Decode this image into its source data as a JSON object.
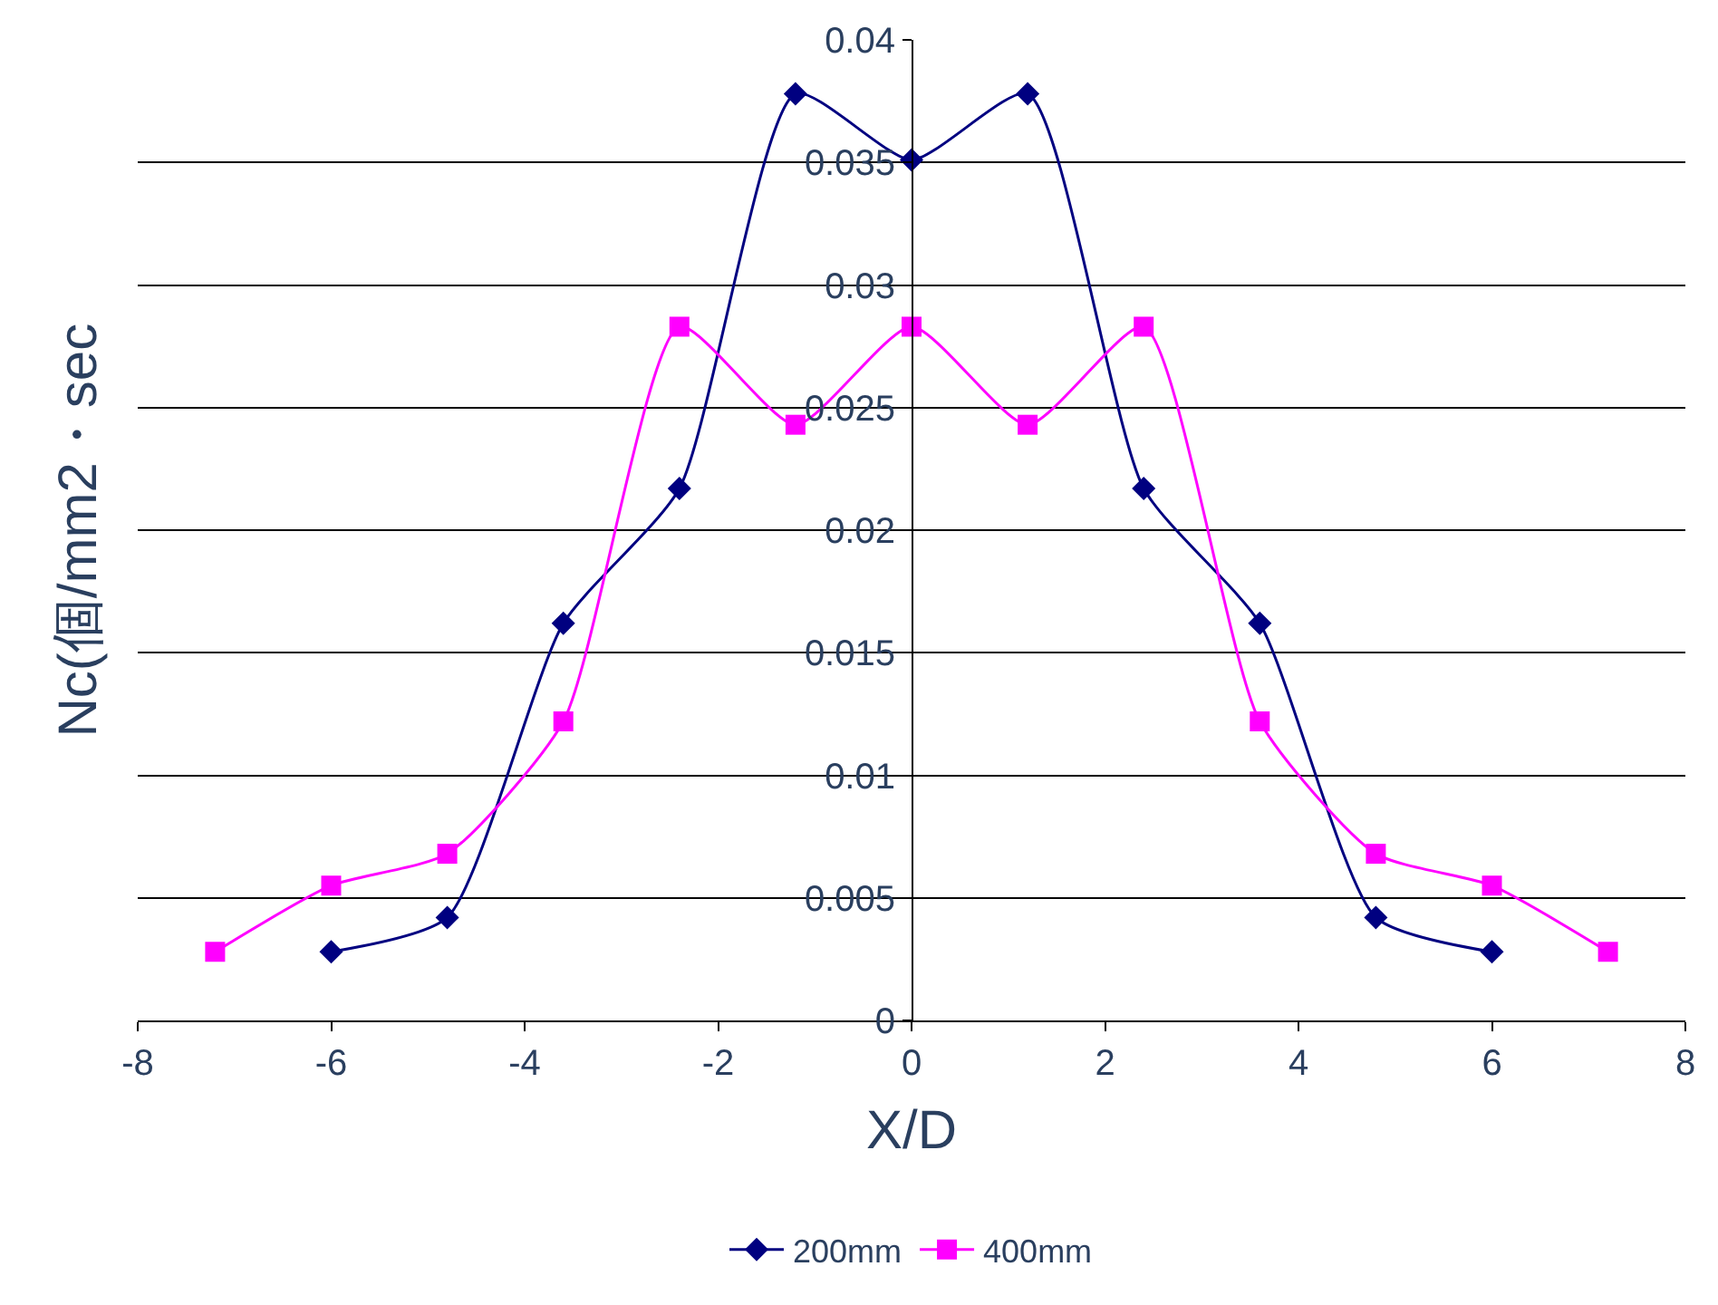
{
  "chart_data": {
    "type": "line",
    "xlabel": "X/D",
    "ylabel": "Nc(個/mm2・sec",
    "xlim": [
      -8,
      8
    ],
    "xticks": [
      -8,
      -6,
      -4,
      -2,
      0,
      2,
      4,
      6,
      8
    ],
    "ylim": [
      0,
      0.04
    ],
    "yticks": [
      0,
      0.005,
      0.01,
      0.015,
      0.02,
      0.025,
      0.03,
      0.035,
      0.04
    ],
    "grid": "y",
    "legend": "bottom",
    "series": [
      {
        "name": "200mm",
        "color": "#000080",
        "marker": "diamond",
        "x": [
          -6,
          -4.8,
          -3.6,
          -2.4,
          -1.2,
          0,
          1.2,
          2.4,
          3.6,
          4.8,
          6
        ],
        "values": [
          0.0028,
          0.0042,
          0.0162,
          0.0217,
          0.0378,
          0.0351,
          0.0378,
          0.0217,
          0.0162,
          0.0042,
          0.0028
        ]
      },
      {
        "name": "400mm",
        "color": "#ff00ff",
        "marker": "square",
        "x": [
          -7.2,
          -6,
          -4.8,
          -3.6,
          -2.4,
          -1.2,
          0,
          1.2,
          2.4,
          3.6,
          4.8,
          6,
          7.2
        ],
        "values": [
          0.0028,
          0.0055,
          0.0068,
          0.0122,
          0.0283,
          0.0243,
          0.0283,
          0.0243,
          0.0283,
          0.0122,
          0.0068,
          0.0055,
          0.0028
        ]
      }
    ]
  }
}
